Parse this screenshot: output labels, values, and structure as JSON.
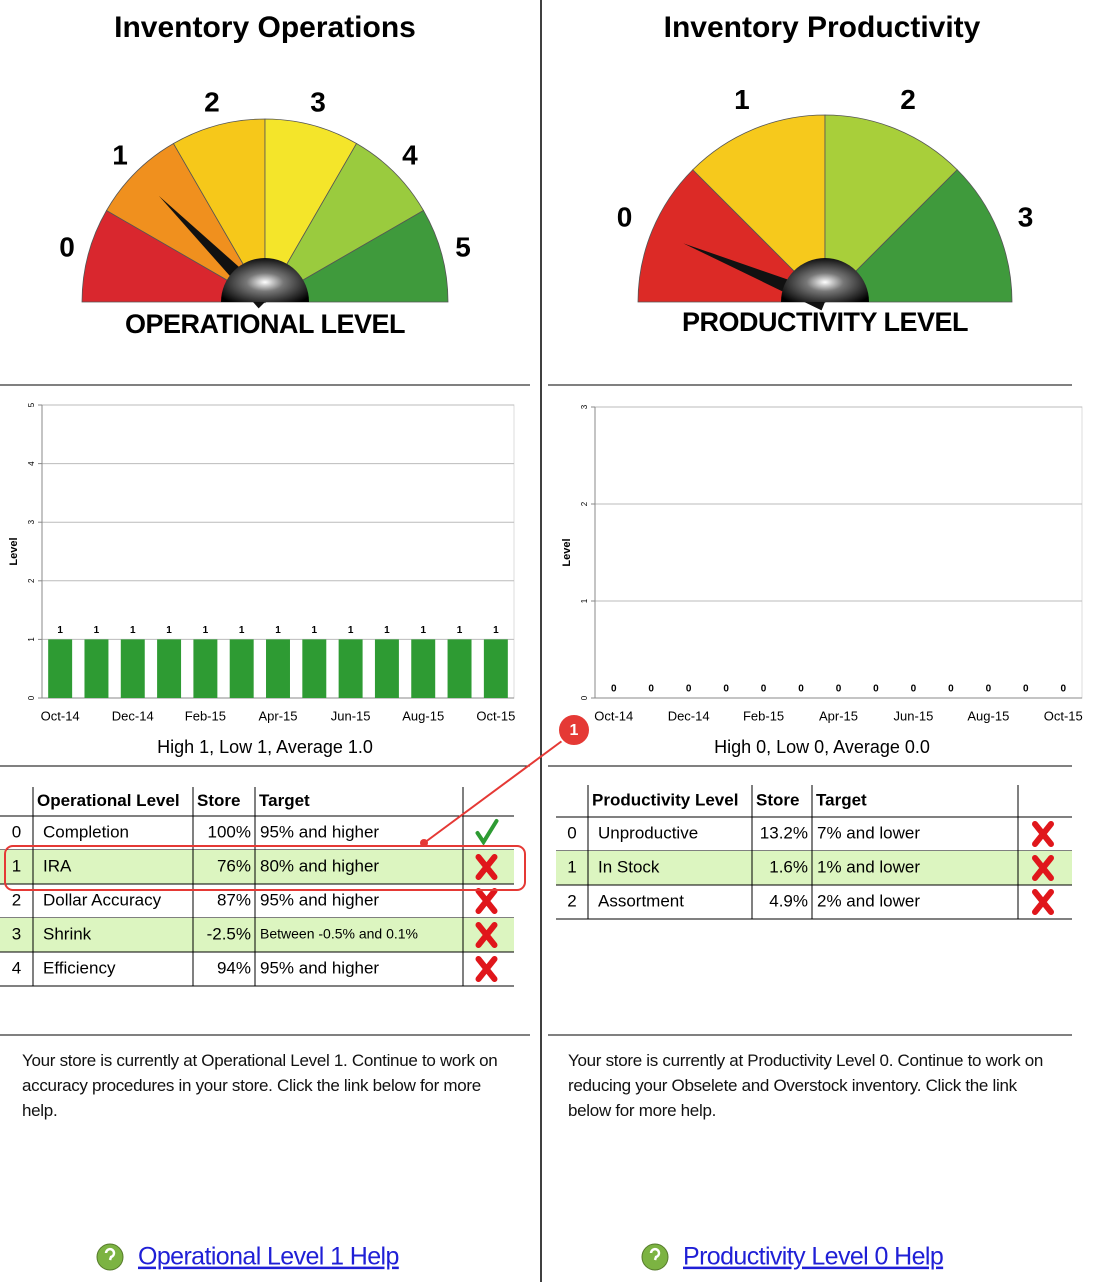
{
  "panels": [
    {
      "title": "Inventory Operations",
      "gauge": {
        "labels": [
          0,
          1,
          2,
          3,
          4,
          5
        ],
        "caption": "OPERATIONAL LEVEL",
        "needle": 1,
        "colors": [
          "#d9272e",
          "#f0901e",
          "#f6c81a",
          "#f4e52a",
          "#9acb3e",
          "#3f9a3c"
        ]
      },
      "table": {
        "headers": [
          "Operational Level",
          "Store",
          "Target"
        ],
        "rows": [
          {
            "cells": [
              "0",
              "Completion",
              "100%",
              "95% and higher"
            ],
            "status": "check"
          },
          {
            "cells": [
              "1",
              "IRA",
              "76%",
              "80% and higher"
            ],
            "status": "cross"
          },
          {
            "cells": [
              "2",
              "Dollar Accuracy",
              "87%",
              "95% and higher"
            ],
            "status": "cross"
          },
          {
            "cells": [
              "3",
              "Shrink",
              "-2.5%",
              "Between -0.5% and 0.1%"
            ],
            "status": "cross"
          },
          {
            "cells": [
              "4",
              "Efficiency",
              "94%",
              "95% and higher"
            ],
            "status": "cross"
          }
        ]
      },
      "message": "Your store is currently at Operational Level 1. Continue to work on accuracy procedures in your store. Click the link below for more help.",
      "link": "Operational Level 1 Help"
    },
    {
      "title": "Inventory Productivity",
      "gauge": {
        "labels": [
          0,
          1,
          2,
          3
        ],
        "caption": "PRODUCTIVITY LEVEL",
        "needle": 0,
        "colors": [
          "#dc2a26",
          "#f6c91c",
          "#a8cf3a",
          "#3f9a3c"
        ]
      },
      "table": {
        "headers": [
          "Productivity Level",
          "Store",
          "Target"
        ],
        "rows": [
          {
            "cells": [
              "0",
              "Unproductive",
              "13.2%",
              "7% and lower"
            ],
            "status": "cross"
          },
          {
            "cells": [
              "1",
              "In Stock",
              "1.6%",
              "1% and lower"
            ],
            "status": "cross"
          },
          {
            "cells": [
              "2",
              "Assortment",
              "4.9%",
              "2% and lower"
            ],
            "status": "cross"
          }
        ]
      },
      "message": "Your store is currently at Productivity Level 0. Continue to work on reducing your Obselete and Overstock inventory. Click the link below for more help.",
      "link": "Productivity Level 0 Help"
    }
  ],
  "chart_data": [
    {
      "type": "bar",
      "ylabel": "Level",
      "subtitle": "High 1, Low 1, Average 1.0",
      "categories": [
        "Oct-14",
        null,
        "Dec-14",
        null,
        "Feb-15",
        null,
        "Apr-15",
        null,
        "Jun-15",
        null,
        "Aug-15",
        null,
        "Oct-15"
      ],
      "values": [
        1,
        1,
        1,
        1,
        1,
        1,
        1,
        1,
        1,
        1,
        1,
        1,
        1
      ],
      "color": "#2e9b33",
      "ylim": [
        0,
        5
      ],
      "yticks": [
        0,
        1,
        2,
        3,
        4,
        5
      ],
      "grid": true
    },
    {
      "type": "bar",
      "ylabel": "Level",
      "subtitle": "High 0, Low 0, Average 0.0",
      "categories": [
        "Oct-14",
        null,
        "Dec-14",
        null,
        "Feb-15",
        null,
        "Apr-15",
        null,
        "Jun-15",
        null,
        "Aug-15",
        null,
        "Oct-15"
      ],
      "values": [
        0,
        0,
        0,
        0,
        0,
        0,
        0,
        0,
        0,
        0,
        0,
        0,
        0
      ],
      "color": "#2e9b33",
      "ylim": [
        0,
        3
      ],
      "yticks": [
        0,
        1,
        2,
        3
      ],
      "grid": true
    }
  ],
  "annotation": {
    "badge": "1"
  }
}
